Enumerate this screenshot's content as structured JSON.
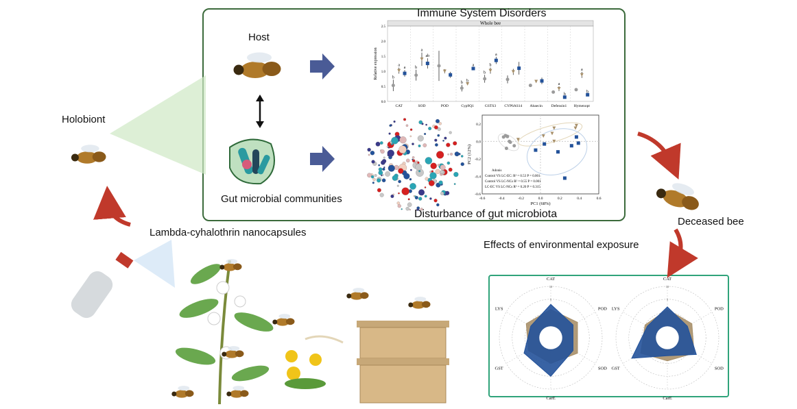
{
  "labels": {
    "immune_title": "Immune System Disorders",
    "host": "Host",
    "gut": "Gut microbial communities",
    "disturbance": "Disturbance of gut microbiota",
    "holobiont": "Holobiont",
    "deceased": "Deceased bee",
    "effects": "Effects of environmental exposure",
    "pesticide": "Lambda-cyhalothrin nanocapsules"
  },
  "colors": {
    "box_border": "#3b6a3b",
    "env_border": "#2fa37a",
    "control": "#9b9b9b",
    "lc_ec": "#a8906a",
    "lc_ncs": "#23529a",
    "arrow_blue": "#4a5b96",
    "arrow_red": "#c0392b"
  },
  "chart_data": [
    {
      "type": "scatter",
      "panel": "Whole bee",
      "ylabel": "Relative expression",
      "ylim": [
        0,
        2.5
      ],
      "yticks": [
        "0.0",
        "0.5",
        "1.0",
        "1.5",
        "2.0",
        "2.5"
      ],
      "categories": [
        "CAT",
        "SOD",
        "POD",
        "Cyp9Q1",
        "GSTS3",
        "CYP6AS14",
        "Abaecin",
        "Defensin1",
        "Hymenopt"
      ],
      "series": [
        {
          "marker": "circle",
          "color": "#9b9b9b",
          "values": [
            0.53,
            0.87,
            1.18,
            0.44,
            0.75,
            0.73,
            0.53,
            0.31,
            0.39
          ],
          "errors": [
            0.19,
            0.18,
            0.5,
            0.11,
            0.13,
            0.13,
            0.04,
            0.03,
            0.04
          ],
          "letters": [
            "b",
            "b",
            "",
            "b",
            "b",
            "",
            "",
            "",
            ""
          ]
        },
        {
          "marker": "triangle",
          "color": "#a8906a",
          "values": [
            1.02,
            1.4,
            1.0,
            0.58,
            1.02,
            0.98,
            0.66,
            0.42,
            0.88
          ],
          "errors": [
            0.1,
            0.22,
            0.07,
            0.02,
            0.1,
            0.1,
            0.04,
            0.08,
            0.1
          ],
          "letters": [
            "a",
            "a",
            "",
            "b",
            "b",
            "",
            "",
            "a",
            "a"
          ]
        },
        {
          "marker": "square",
          "color": "#23529a",
          "values": [
            0.93,
            1.26,
            0.88,
            1.09,
            1.36,
            1.1,
            0.68,
            0.14,
            0.22
          ],
          "errors": [
            0.11,
            0.17,
            0.1,
            0.03,
            0.12,
            0.21,
            0.11,
            0.02,
            0.02
          ],
          "letters": [
            "a",
            "ab",
            "",
            "a",
            "a",
            "",
            "",
            "b",
            "b"
          ]
        }
      ]
    },
    {
      "type": "scatter",
      "xlabel": "PC1 (68%)",
      "ylabel": "PC2 (12%)",
      "xlim": [
        -0.6,
        0.6
      ],
      "ylim": [
        -0.6,
        0.3
      ],
      "xticks": [
        "-0.6",
        "-0.4",
        "-0.2",
        "0.0",
        "0.2",
        "0.4",
        "0.6"
      ],
      "yticks": [
        "-0.6",
        "-0.4",
        "-0.2",
        "0.0",
        "0.2"
      ],
      "series": [
        {
          "marker": "circle",
          "color": "#9b9b9b",
          "points": [
            [
              -0.38,
              0.05
            ],
            [
              -0.36,
              0.065
            ],
            [
              -0.34,
              0.055
            ],
            [
              -0.32,
              0.0
            ],
            [
              -0.31,
              -0.01
            ],
            [
              -0.27,
              -0.05
            ],
            [
              -0.35,
              -0.08
            ]
          ]
        },
        {
          "marker": "triangle",
          "color": "#a8906a",
          "points": [
            [
              -0.23,
              0.02
            ],
            [
              0.03,
              0.06
            ],
            [
              0.12,
              0.09
            ],
            [
              0.14,
              0.15
            ],
            [
              0.14,
              0.0
            ],
            [
              0.36,
              0.15
            ],
            [
              0.37,
              0.18
            ]
          ]
        },
        {
          "marker": "square",
          "color": "#23529a",
          "points": [
            [
              -0.05,
              -0.1
            ],
            [
              0.04,
              -0.03
            ],
            [
              0.18,
              -0.12
            ],
            [
              0.32,
              -0.05
            ],
            [
              0.37,
              0.05
            ],
            [
              0.39,
              -0.02
            ],
            [
              0.25,
              -0.42
            ]
          ]
        }
      ],
      "annotation": [
        "Adonis",
        "Control VS LC-EC: R² = 0.53  P = 0.001",
        "Control VS LC-NCs R² = 0.55  P = 0.001",
        "LC-EC VS LC-NCs R² = 0.20  P = 0.315"
      ]
    },
    {
      "type": "radar",
      "axes": [
        "CAT",
        "POD",
        "SOD",
        "CarE",
        "GST",
        "LYS"
      ],
      "ring_labels": [
        "10",
        "5",
        "0",
        "-5"
      ],
      "range": [
        -10,
        10
      ],
      "series": [
        {
          "color": "#a8906a",
          "values": [
            1,
            2,
            2,
            0,
            0,
            1
          ]
        },
        {
          "color": "#23529a",
          "values": [
            3,
            0,
            0,
            5,
            2,
            -1
          ]
        }
      ]
    },
    {
      "type": "radar",
      "axes": [
        "CAT",
        "POD",
        "SOD",
        "CarE",
        "GST",
        "LYS"
      ],
      "ring_labels": [
        "10",
        "5",
        "0",
        "-5"
      ],
      "range": [
        -10,
        10
      ],
      "series": [
        {
          "color": "#a8906a",
          "values": [
            1,
            1,
            2,
            -1,
            2,
            0
          ]
        },
        {
          "color": "#23529a",
          "values": [
            2,
            -1,
            3,
            -3,
            6,
            -1
          ]
        }
      ]
    }
  ]
}
